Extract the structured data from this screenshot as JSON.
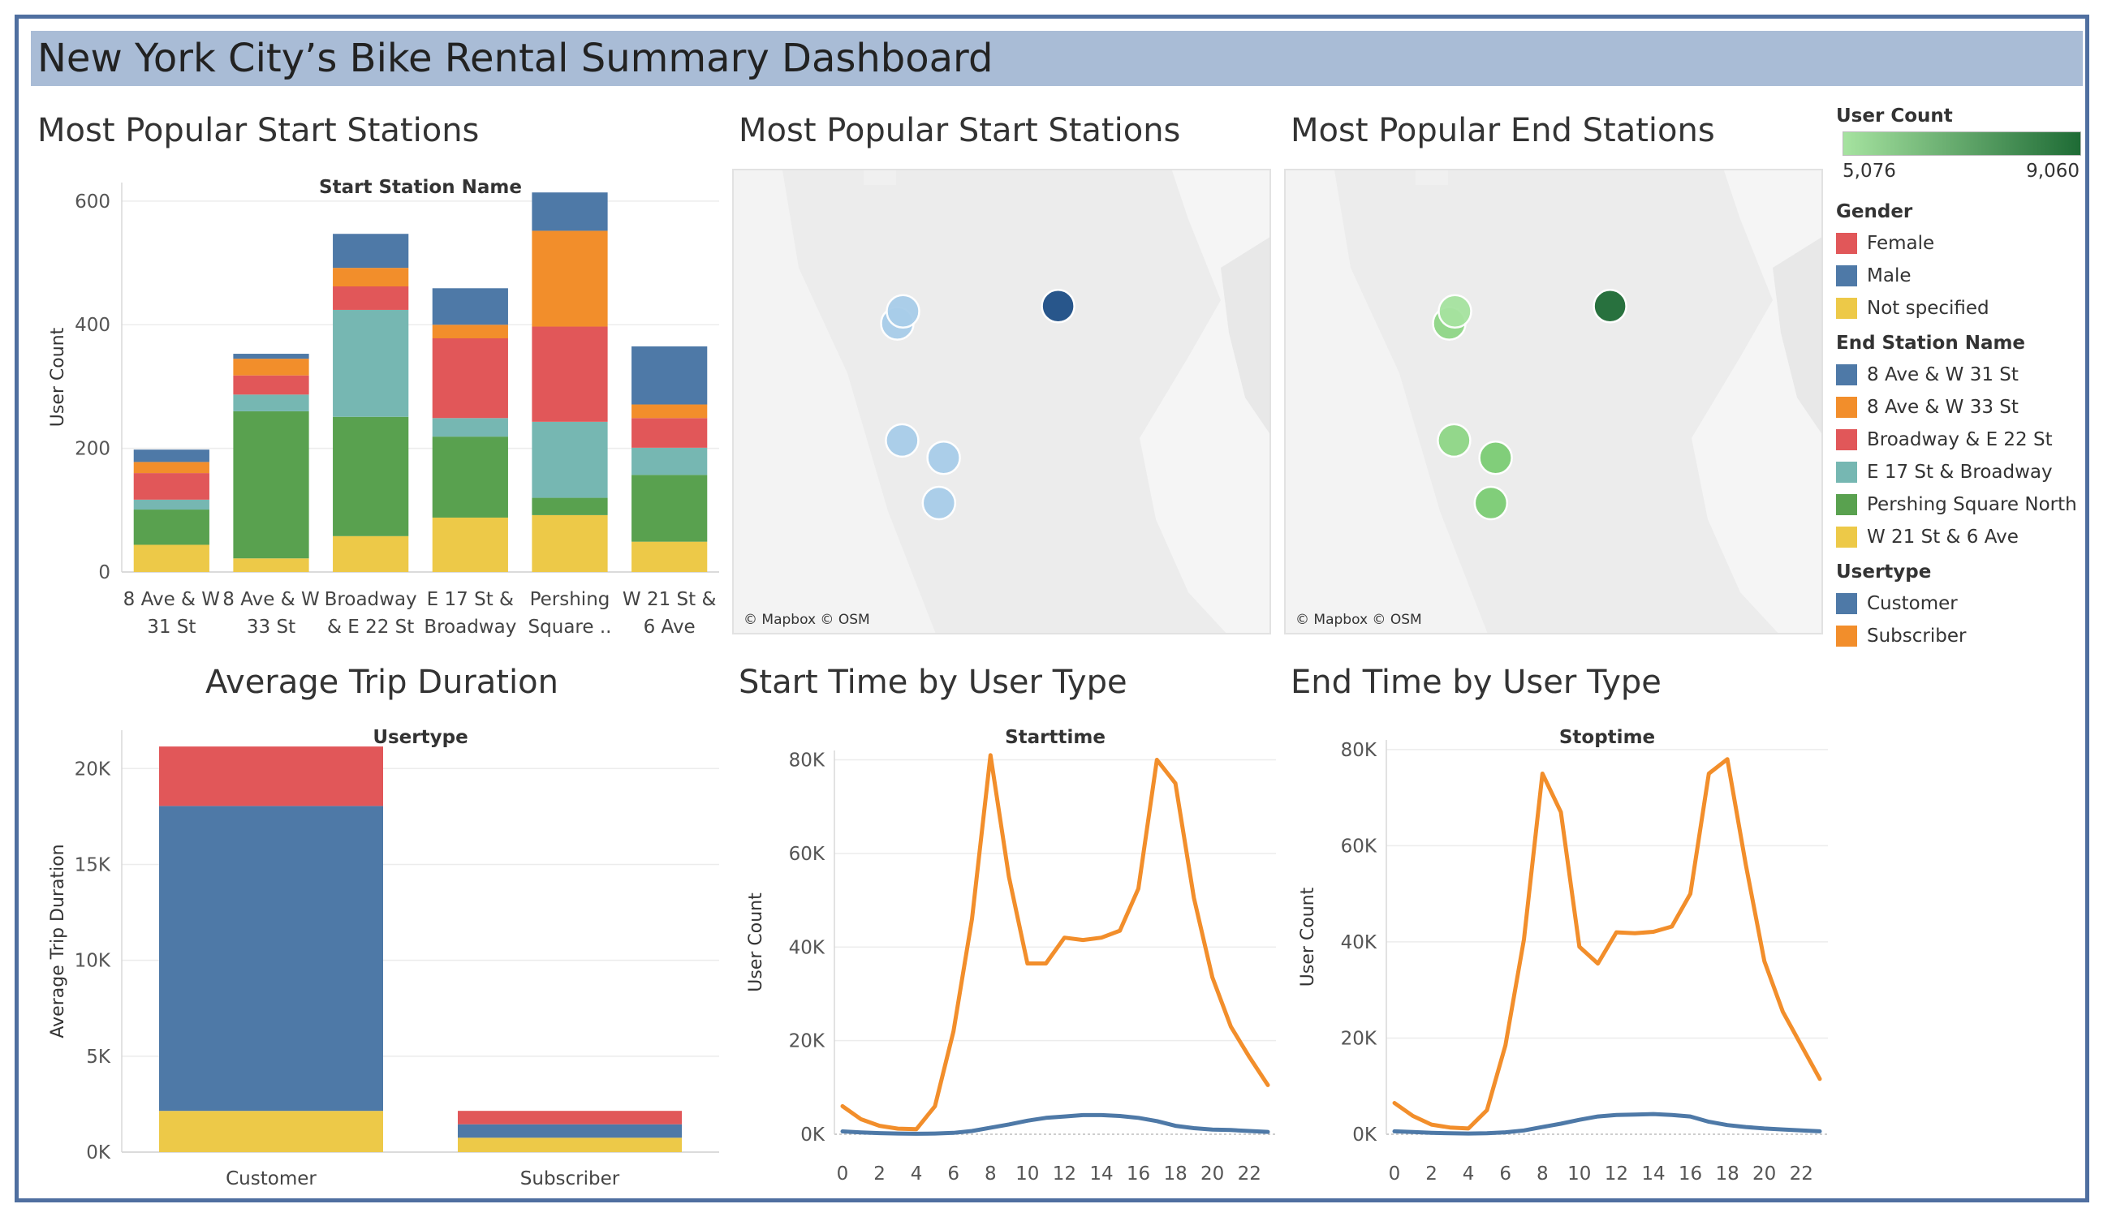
{
  "dashboard": {
    "title": "New York City’s Bike Rental Summary Dashboard"
  },
  "sheets": {
    "start_bar_title": "Most Popular Start Stations",
    "start_map_title": "Most Popular Start Stations",
    "end_map_title": "Most Popular End Stations",
    "avg_title": "Average Trip Duration",
    "start_time_title": "Start Time by User Type",
    "end_time_title": "End Time by User Type"
  },
  "map_credit": "© Mapbox © OSM",
  "legend": {
    "user_count": {
      "title": "User Count",
      "min_label": "5,076",
      "max_label": "9,060",
      "min_color": "#a6e3a0",
      "max_color": "#1e6b35"
    },
    "gender": {
      "title": "Gender",
      "items": [
        {
          "label": "Female",
          "color": "#e15759"
        },
        {
          "label": "Male",
          "color": "#4e79a7"
        },
        {
          "label": "Not specified",
          "color": "#edc948"
        }
      ]
    },
    "end_station": {
      "title": "End Station Name",
      "items": [
        {
          "label": "8 Ave & W 31 St",
          "color": "#4e79a7"
        },
        {
          "label": "8 Ave & W 33 St",
          "color": "#f28e2b"
        },
        {
          "label": "Broadway & E 22 St",
          "color": "#e15759"
        },
        {
          "label": "E 17 St & Broadway",
          "color": "#76b7b2"
        },
        {
          "label": "Pershing Square North",
          "color": "#59a14f"
        },
        {
          "label": "W 21 St & 6 Ave",
          "color": "#edc948"
        }
      ]
    },
    "usertype": {
      "title": "Usertype",
      "items": [
        {
          "label": "Customer",
          "color": "#4e79a7"
        },
        {
          "label": "Subscriber",
          "color": "#f28e2b"
        }
      ]
    }
  },
  "chart_data": [
    {
      "id": "start_stations_bar",
      "type": "bar",
      "stacked": true,
      "title": "Start Station Name",
      "xlabel": "",
      "ylabel": "User Count",
      "ylim": [
        0,
        630
      ],
      "yticks": [
        0,
        200,
        400,
        600
      ],
      "categories": [
        [
          "8 Ave & W",
          "31 St"
        ],
        [
          "8 Ave & W",
          "33 St"
        ],
        [
          "Broadway",
          "& E 22 St"
        ],
        [
          "E 17 St &",
          "Broadway"
        ],
        [
          "Pershing",
          "Square .."
        ],
        [
          "W 21 St &",
          "6 Ave"
        ]
      ],
      "series": [
        {
          "name": "W 21 St & 6 Ave",
          "color": "#edc948",
          "values": [
            44,
            22,
            58,
            88,
            92,
            49
          ]
        },
        {
          "name": "Pershing Square North",
          "color": "#59a14f",
          "values": [
            57,
            238,
            193,
            131,
            28,
            108
          ]
        },
        {
          "name": "E 17 St & Broadway",
          "color": "#76b7b2",
          "values": [
            16,
            27,
            173,
            30,
            123,
            44
          ]
        },
        {
          "name": "Broadway & E 22 St",
          "color": "#e15759",
          "values": [
            43,
            31,
            38,
            129,
            154,
            48
          ]
        },
        {
          "name": "8 Ave & W 33 St",
          "color": "#f28e2b",
          "values": [
            18,
            27,
            30,
            22,
            155,
            22
          ]
        },
        {
          "name": "8 Ave & W 31 St",
          "color": "#4e79a7",
          "values": [
            20,
            8,
            55,
            59,
            62,
            94
          ]
        }
      ]
    },
    {
      "id": "avg_trip_duration",
      "type": "bar",
      "stacked": true,
      "title": "Usertype",
      "xlabel": "",
      "ylabel": "Average Trip Duration",
      "ylim": [
        0,
        22000
      ],
      "yticks": [
        0,
        5000,
        10000,
        15000,
        20000
      ],
      "ytick_labels": [
        "0K",
        "5K",
        "10K",
        "15K",
        "20K"
      ],
      "categories": [
        "Customer",
        "Subscriber"
      ],
      "series": [
        {
          "name": "Not specified",
          "color": "#edc948",
          "values": [
            2150,
            750
          ]
        },
        {
          "name": "Male",
          "color": "#4e79a7",
          "values": [
            15900,
            700
          ]
        },
        {
          "name": "Female",
          "color": "#e15759",
          "values": [
            3100,
            700
          ]
        }
      ]
    },
    {
      "id": "start_time",
      "type": "line",
      "title": "Starttime",
      "xlabel": "",
      "ylabel": "User Count",
      "xlim": [
        0,
        23
      ],
      "ylim": [
        0,
        82000
      ],
      "xticks": [
        0,
        2,
        4,
        6,
        8,
        10,
        12,
        14,
        16,
        18,
        20,
        22
      ],
      "yticks": [
        0,
        20000,
        40000,
        60000,
        80000
      ],
      "ytick_labels": [
        "0K",
        "20K",
        "40K",
        "60K",
        "80K"
      ],
      "x": [
        0,
        1,
        2,
        3,
        4,
        5,
        6,
        7,
        8,
        9,
        10,
        11,
        12,
        13,
        14,
        15,
        16,
        17,
        18,
        19,
        20,
        21,
        22,
        23
      ],
      "series": [
        {
          "name": "Subscriber",
          "color": "#f28e2b",
          "values": [
            6000,
            3200,
            1800,
            1200,
            1100,
            6000,
            22000,
            46000,
            81000,
            55000,
            36500,
            36500,
            42000,
            41500,
            42000,
            43500,
            52500,
            80000,
            75000,
            50500,
            33500,
            23000,
            16500,
            10500
          ]
        },
        {
          "name": "Customer",
          "color": "#4e79a7",
          "values": [
            600,
            400,
            250,
            150,
            100,
            150,
            300,
            700,
            1400,
            2100,
            2900,
            3500,
            3800,
            4100,
            4100,
            3900,
            3500,
            2800,
            1800,
            1300,
            1000,
            900,
            700,
            500
          ]
        }
      ]
    },
    {
      "id": "end_time",
      "type": "line",
      "title": "Stoptime",
      "xlabel": "",
      "ylabel": "User Count",
      "xlim": [
        0,
        23
      ],
      "ylim": [
        0,
        82000
      ],
      "xticks": [
        0,
        2,
        4,
        6,
        8,
        10,
        12,
        14,
        16,
        18,
        20,
        22
      ],
      "yticks": [
        0,
        20000,
        40000,
        60000,
        80000
      ],
      "ytick_labels": [
        "0K",
        "20K",
        "40K",
        "60K",
        "80K"
      ],
      "x": [
        0,
        1,
        2,
        3,
        4,
        5,
        6,
        7,
        8,
        9,
        10,
        11,
        12,
        13,
        14,
        15,
        16,
        17,
        18,
        19,
        20,
        21,
        22,
        23
      ],
      "series": [
        {
          "name": "Subscriber",
          "color": "#f28e2b",
          "values": [
            6500,
            3800,
            2000,
            1400,
            1200,
            5000,
            18500,
            40500,
            75000,
            67000,
            39000,
            35500,
            42000,
            41800,
            42100,
            43200,
            50000,
            75000,
            78000,
            56000,
            36000,
            25500,
            18500,
            11500
          ]
        },
        {
          "name": "Customer",
          "color": "#4e79a7",
          "values": [
            600,
            450,
            300,
            200,
            150,
            200,
            400,
            800,
            1500,
            2200,
            3000,
            3700,
            4000,
            4100,
            4200,
            4000,
            3700,
            2600,
            1900,
            1500,
            1200,
            1000,
            800,
            600
          ]
        }
      ]
    },
    {
      "id": "start_map",
      "type": "scatter",
      "encoding": "user count → blue shade",
      "stations": [
        {
          "name": "8 Ave & W 31 St",
          "lat": 40.7505,
          "lon": -73.9947,
          "color": "#a8cde9"
        },
        {
          "name": "8 Ave & W 33 St",
          "lat": 40.7514,
          "lon": -73.9941,
          "color": "#a8cde9"
        },
        {
          "name": "Pershing Square North",
          "lat": 40.7518,
          "lon": -73.9777,
          "color": "#1e4e86"
        },
        {
          "name": "W 21 St & 6 Ave",
          "lat": 40.7417,
          "lon": -73.9942,
          "color": "#a8cde9"
        },
        {
          "name": "E 17 St & Broadway",
          "lat": 40.737,
          "lon": -73.9903,
          "color": "#a8cde9"
        },
        {
          "name": "Broadway & E 22 St",
          "lat": 40.7404,
          "lon": -73.9898,
          "color": "#a8cde9"
        }
      ]
    },
    {
      "id": "end_map",
      "type": "scatter",
      "encoding": "user count → green shade",
      "stations": [
        {
          "name": "8 Ave & W 31 St",
          "lat": 40.7505,
          "lon": -73.9947,
          "color": "#8fd686"
        },
        {
          "name": "8 Ave & W 33 St",
          "lat": 40.7514,
          "lon": -73.9941,
          "color": "#a6e3a0"
        },
        {
          "name": "Pershing Square North",
          "lat": 40.7518,
          "lon": -73.9777,
          "color": "#1e6b35"
        },
        {
          "name": "W 21 St & 6 Ave",
          "lat": 40.7417,
          "lon": -73.9942,
          "color": "#8fd686"
        },
        {
          "name": "E 17 St & Broadway",
          "lat": 40.737,
          "lon": -73.9903,
          "color": "#7ccd74"
        },
        {
          "name": "Broadway & E 22 St",
          "lat": 40.7404,
          "lon": -73.9898,
          "color": "#7ccd74"
        }
      ]
    }
  ]
}
